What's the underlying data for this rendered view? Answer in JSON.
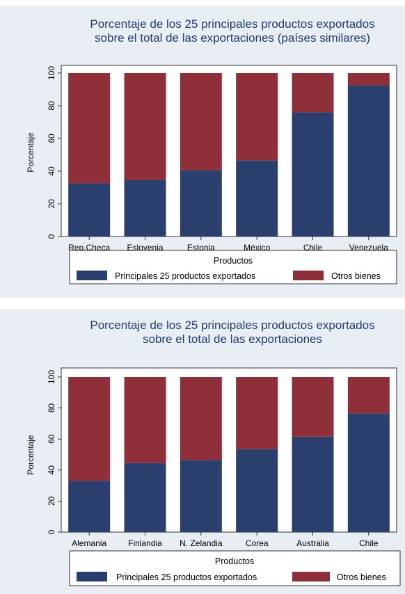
{
  "colors": {
    "series1": "#2a3f6e",
    "series2": "#8f2f3a",
    "panel_bg": "#e9eef4",
    "plot_bg": "#ffffff",
    "title": "#1f3d73"
  },
  "chart_data": [
    {
      "type": "bar",
      "stacked": true,
      "title": "Porcentaje de los 25 principales productos exportados",
      "subtitle": "sobre el total de las exportaciones (países similares)",
      "xlabel": "",
      "ylabel": "Porcentaje",
      "ylim": [
        0,
        100
      ],
      "yticks": [
        "0",
        "20",
        "40",
        "60",
        "80",
        "100"
      ],
      "categories": [
        "Rep.Checa",
        "Eslovenia",
        "Estonia",
        "México",
        "Chile",
        "Venezuela"
      ],
      "series": [
        {
          "name": "Principales 25 productos exportados",
          "values": [
            32.5,
            34.5,
            40.5,
            46.5,
            76,
            92.5
          ]
        },
        {
          "name": "Otros bienes",
          "values": [
            67.5,
            65.5,
            59.5,
            53.5,
            24,
            7.5
          ]
        }
      ],
      "legend_title": "Productos",
      "legend_position": "bottom",
      "grid": false
    },
    {
      "type": "bar",
      "stacked": true,
      "title": "Porcentaje de los 25 principales productos exportados",
      "subtitle": "sobre el total de las exportaciones",
      "xlabel": "",
      "ylabel": "Porcentaje",
      "ylim": [
        0,
        100
      ],
      "yticks": [
        "0",
        "20",
        "40",
        "60",
        "80",
        "100"
      ],
      "categories": [
        "Alemania",
        "Finlandia",
        "N. Zelandia",
        "Corea",
        "Australia",
        "Chile"
      ],
      "series": [
        {
          "name": "Principales 25 productos exportados",
          "values": [
            33,
            44.5,
            46.5,
            53.5,
            61.5,
            76.5
          ]
        },
        {
          "name": "Otros bienes",
          "values": [
            67,
            55.5,
            53.5,
            46.5,
            38.5,
            23.5
          ]
        }
      ],
      "legend_title": "Productos",
      "legend_position": "bottom",
      "grid": false
    }
  ]
}
